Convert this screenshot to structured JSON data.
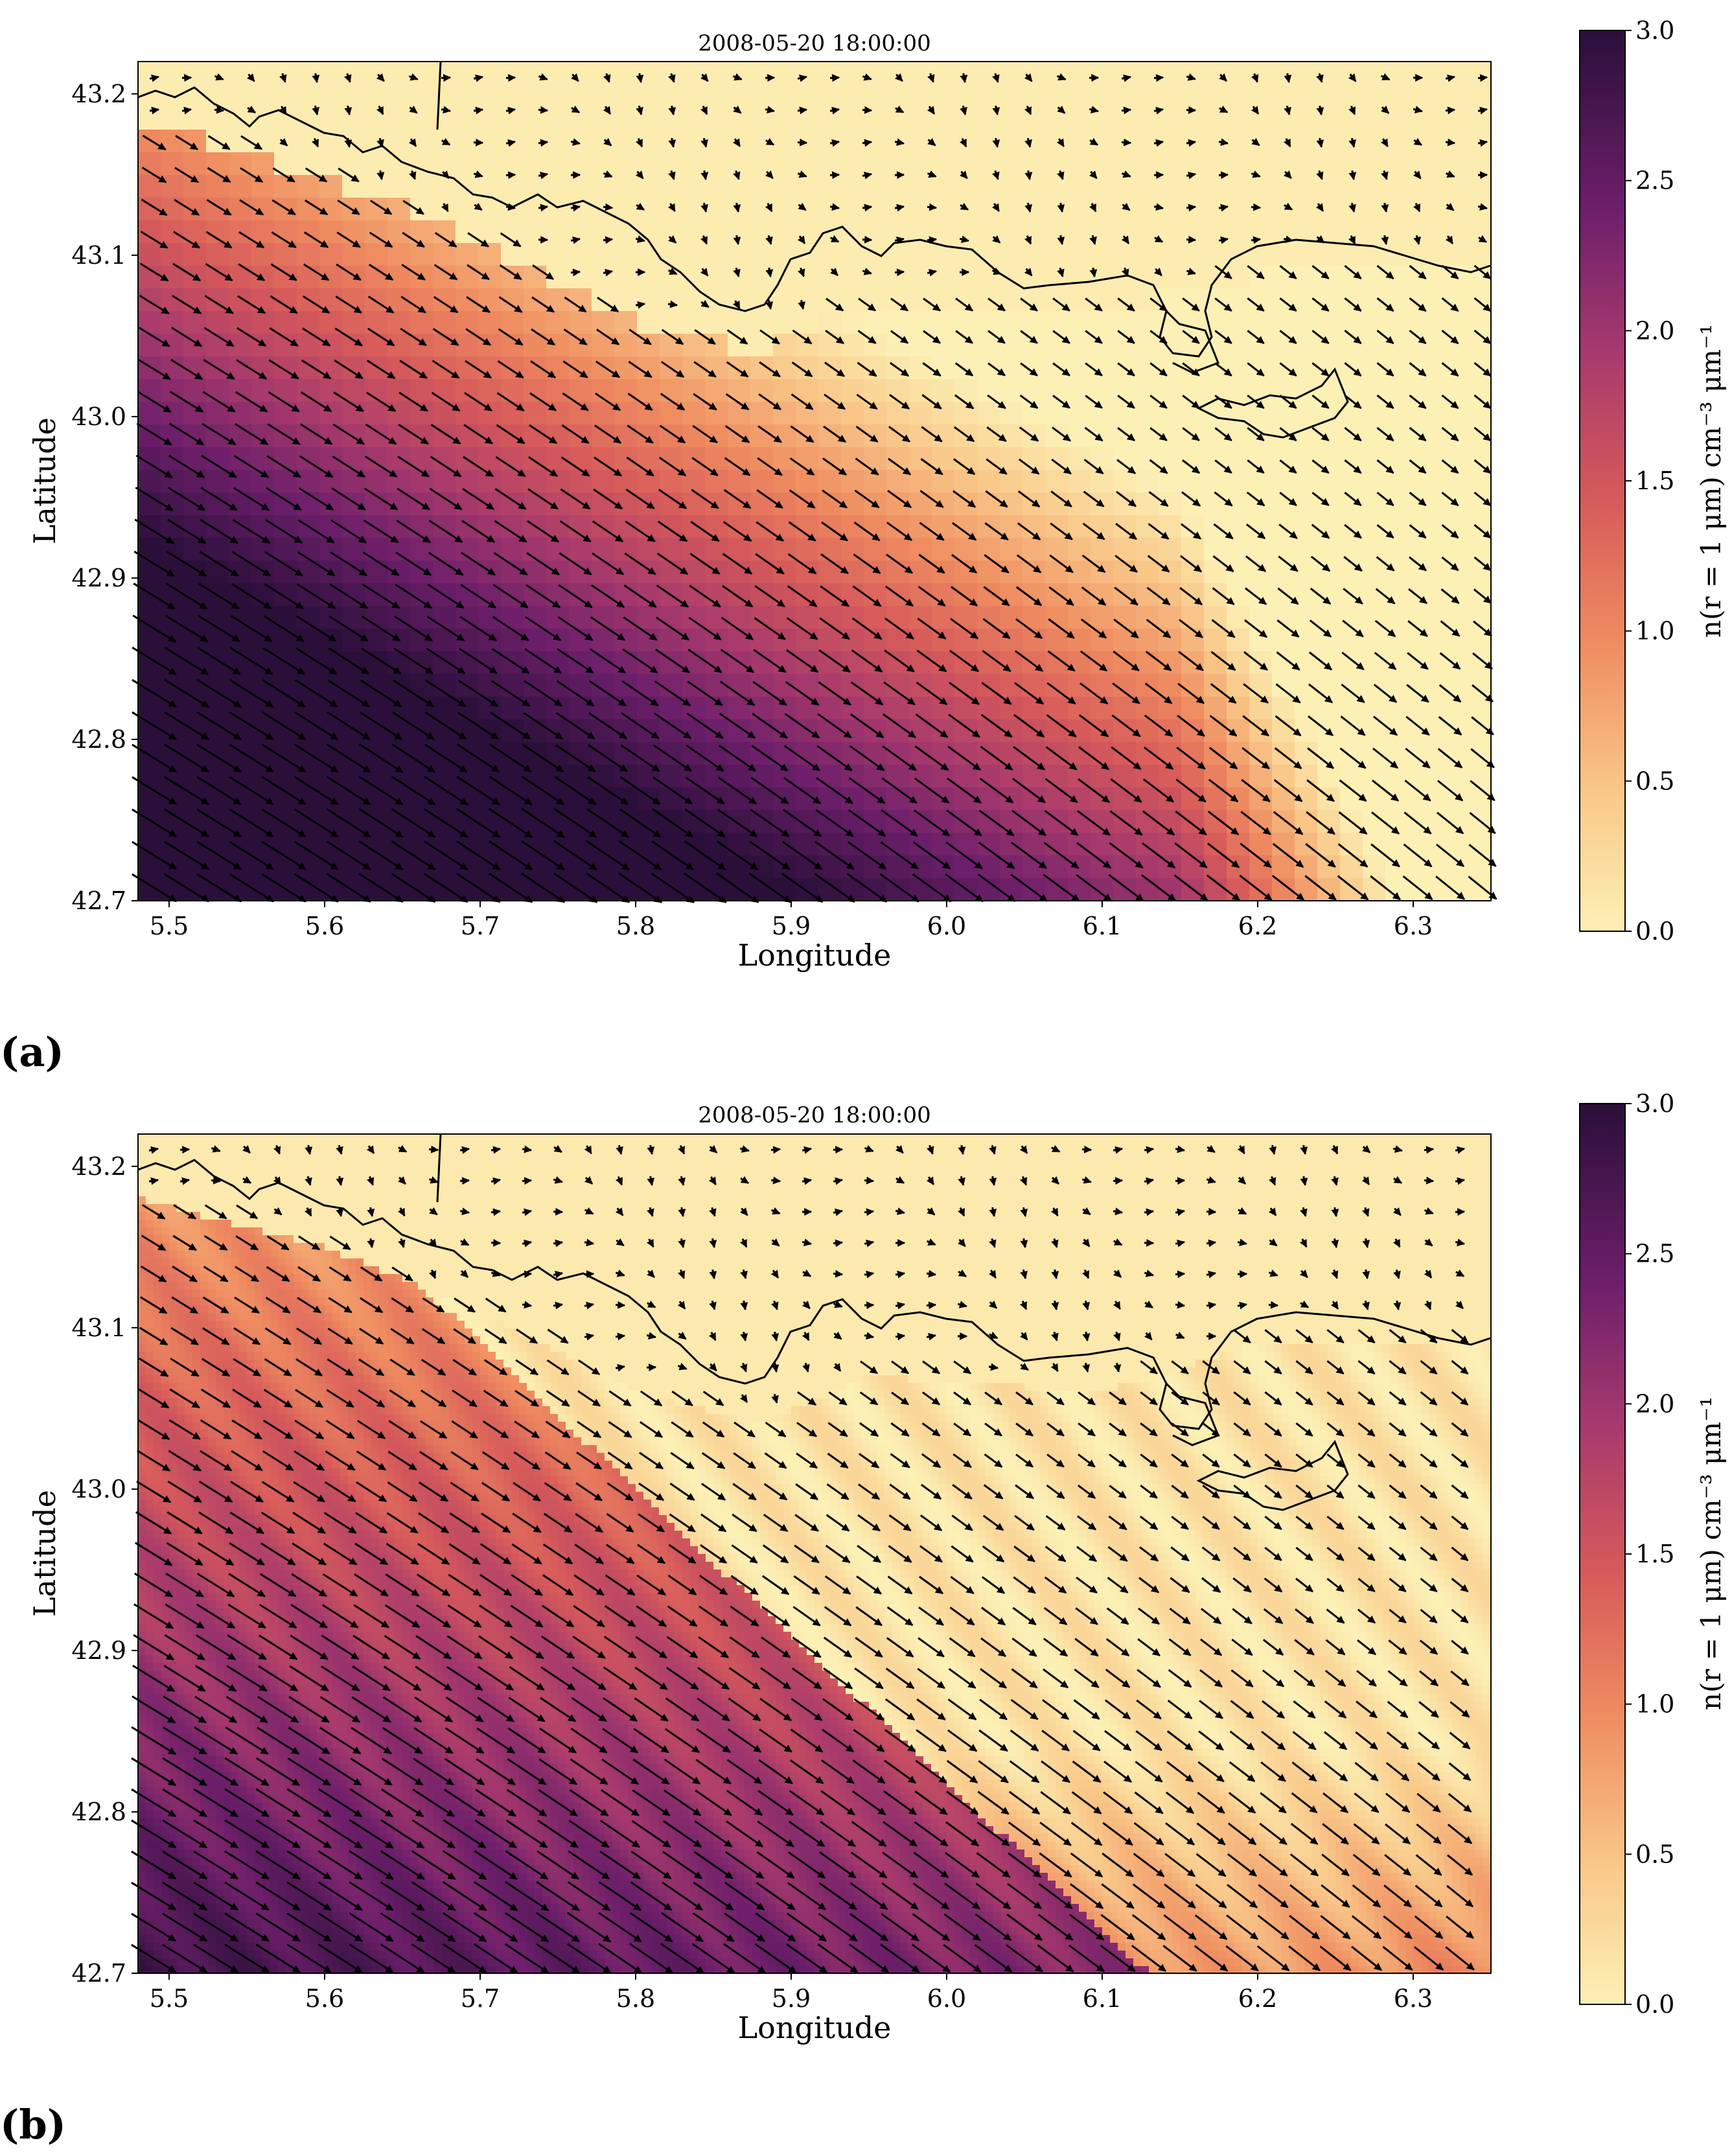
{
  "chart_data": [
    {
      "type": "heatmap",
      "panel_label": "(a)",
      "title": "2008-05-20 18:00:00",
      "xlabel": "Longitude",
      "ylabel": "Latitude",
      "xlim": [
        5.48,
        6.35
      ],
      "ylim": [
        42.7,
        43.22
      ],
      "xticks": [
        "5.5",
        "5.6",
        "5.7",
        "5.8",
        "5.9",
        "6.0",
        "6.1",
        "6.2",
        "6.3"
      ],
      "yticks": [
        "42.7",
        "42.8",
        "42.9",
        "43.0",
        "43.1",
        "43.2"
      ],
      "colorbar": {
        "label": "n(r = 1 μm) cm⁻³ μm⁻¹",
        "range": [
          0.0,
          3.0
        ],
        "ticks": [
          "0.0",
          "0.5",
          "1.0",
          "1.5",
          "2.0",
          "2.5",
          "3.0"
        ],
        "colormap": "magma_r"
      },
      "field_description": "coarse grid, high values in southwest decreasing toward coastline",
      "wind_vectors": "quiver arrows pointing southeast, strongest over sea in the west"
    },
    {
      "type": "heatmap",
      "panel_label": "(b)",
      "title": "2008-05-20 18:00:00",
      "xlabel": "Longitude",
      "ylabel": "Latitude",
      "xlim": [
        5.48,
        6.35
      ],
      "ylim": [
        42.7,
        43.22
      ],
      "xticks": [
        "5.5",
        "5.6",
        "5.7",
        "5.8",
        "5.9",
        "6.0",
        "6.1",
        "6.2",
        "6.3"
      ],
      "yticks": [
        "42.7",
        "42.8",
        "42.9",
        "43.0",
        "43.1",
        "43.2"
      ],
      "colorbar": {
        "label": "n(r = 1 μm) cm⁻³ μm⁻¹",
        "range": [
          0.0,
          3.0
        ],
        "ticks": [
          "0.0",
          "0.5",
          "1.0",
          "1.5",
          "2.0",
          "2.5",
          "3.0"
        ],
        "colormap": "magma_r"
      },
      "field_description": "fine grid, sharp front from 5.8 to 5.95 longitude with plume along southern edge",
      "wind_vectors": "quiver arrows pointing southeast over sea, variable over land"
    }
  ],
  "colors": {
    "low": "#fcefb0",
    "mid": "#e8684f",
    "high": "#2b1036"
  }
}
